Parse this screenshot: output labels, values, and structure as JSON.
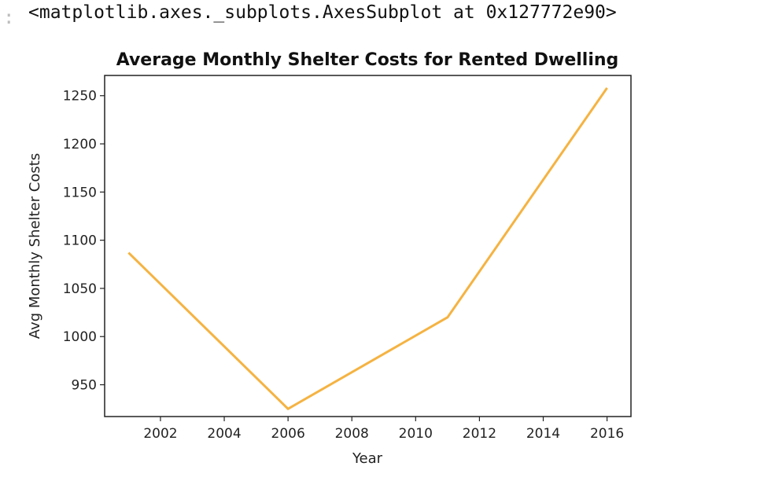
{
  "output": {
    "prompt_marker": ":",
    "repr_text": "<matplotlib.axes._subplots.AxesSubplot at 0x127772e90>"
  },
  "colors": {
    "line": "#f5b342",
    "axes": "#222222"
  },
  "chart_data": {
    "type": "line",
    "title": "Average Monthly Shelter Costs for Rented Dwelling",
    "xlabel": "Year",
    "ylabel": "Avg Monthly Shelter Costs",
    "x": [
      2001,
      2006,
      2011,
      2016
    ],
    "series": [
      {
        "values": [
          1087,
          925,
          1020,
          1258
        ]
      }
    ],
    "xlim": [
      2000.25,
      2016.75
    ],
    "ylim": [
      917,
      1271
    ],
    "xticks": [
      2002,
      2004,
      2006,
      2008,
      2010,
      2012,
      2014,
      2016
    ],
    "xtick_labels": [
      "2002",
      "2004",
      "2006",
      "2008",
      "2010",
      "2012",
      "2014",
      "2016"
    ],
    "yticks": [
      950,
      1000,
      1050,
      1100,
      1150,
      1200,
      1250
    ],
    "ytick_labels": [
      "950",
      "1000",
      "1050",
      "1100",
      "1150",
      "1200",
      "1250"
    ],
    "grid": false,
    "legend": false
  }
}
